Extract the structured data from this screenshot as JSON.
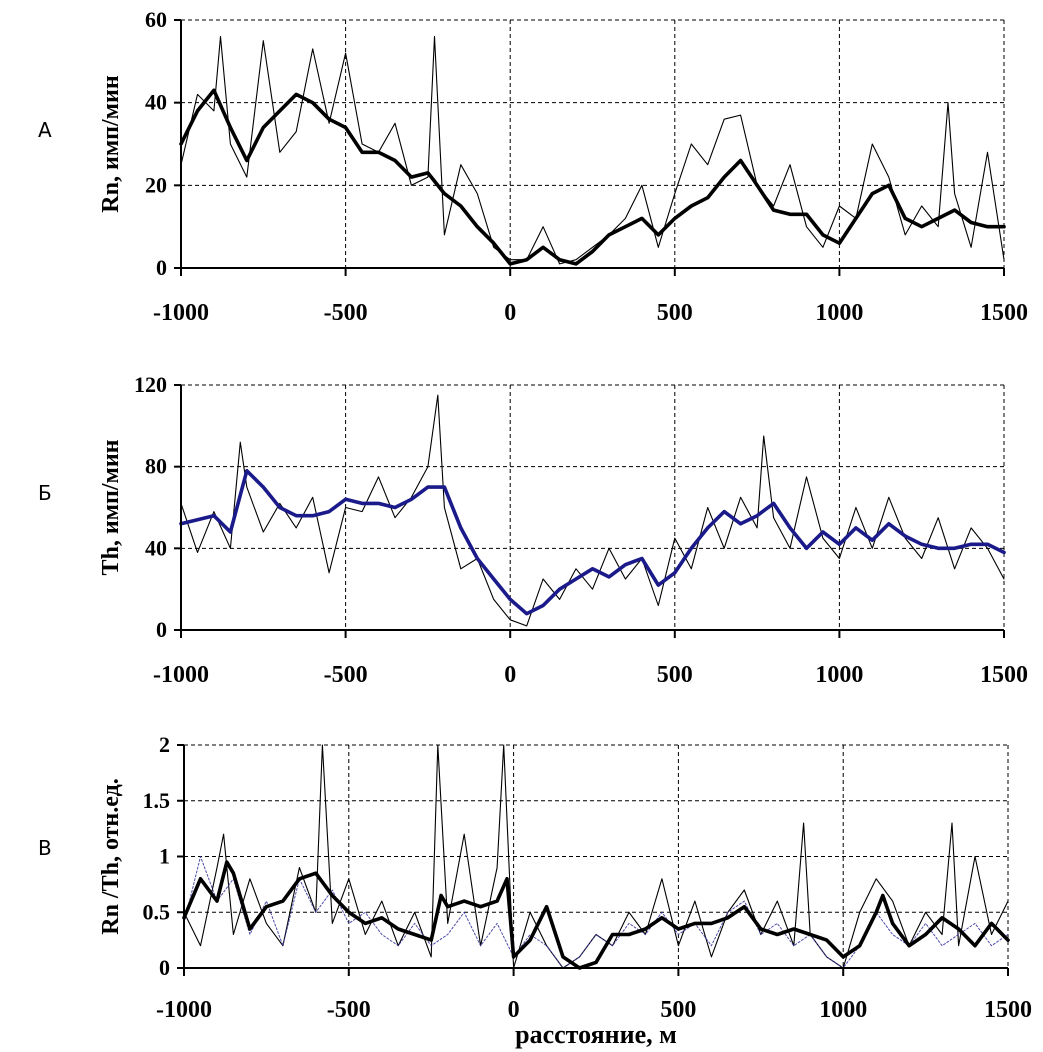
{
  "x_axis_label": "расстояние, м",
  "chart_data": [
    {
      "type": "line",
      "panel_letter": "А",
      "ylabel": "Rn, имп/мин",
      "xlim": [
        -1000,
        1500
      ],
      "ylim": [
        0,
        60
      ],
      "x_ticks": [
        "-1000",
        "-500",
        "0",
        "500",
        "1000",
        "1500"
      ],
      "y_ticks": [
        "0",
        "20",
        "40",
        "60"
      ],
      "grid": true,
      "series": [
        {
          "style": "raw",
          "color": "#000000",
          "x": [
            -1000,
            -950,
            -900,
            -880,
            -850,
            -800,
            -750,
            -700,
            -650,
            -600,
            -550,
            -500,
            -450,
            -400,
            -350,
            -300,
            -250,
            -230,
            -200,
            -150,
            -100,
            -50,
            0,
            50,
            100,
            150,
            200,
            250,
            300,
            350,
            400,
            450,
            500,
            550,
            600,
            650,
            700,
            750,
            800,
            850,
            900,
            950,
            1000,
            1050,
            1100,
            1150,
            1200,
            1250,
            1300,
            1330,
            1350,
            1400,
            1450,
            1500
          ],
          "y": [
            25,
            42,
            38,
            56,
            30,
            22,
            55,
            28,
            33,
            53,
            35,
            52,
            30,
            28,
            35,
            20,
            22,
            56,
            8,
            25,
            18,
            5,
            2,
            2,
            10,
            1,
            2,
            5,
            8,
            12,
            20,
            5,
            18,
            30,
            25,
            36,
            37,
            20,
            15,
            25,
            10,
            5,
            15,
            12,
            30,
            22,
            8,
            15,
            10,
            40,
            18,
            5,
            28,
            2
          ]
        },
        {
          "style": "smoothed",
          "color": "#000000",
          "x": [
            -1000,
            -950,
            -900,
            -850,
            -800,
            -750,
            -700,
            -650,
            -600,
            -550,
            -500,
            -450,
            -400,
            -350,
            -300,
            -250,
            -200,
            -150,
            -100,
            -50,
            0,
            50,
            100,
            150,
            200,
            250,
            300,
            350,
            400,
            450,
            500,
            550,
            600,
            650,
            700,
            750,
            800,
            850,
            900,
            950,
            1000,
            1050,
            1100,
            1150,
            1200,
            1250,
            1300,
            1350,
            1400,
            1450,
            1500
          ],
          "y": [
            30,
            38,
            43,
            34,
            26,
            34,
            38,
            42,
            40,
            36,
            34,
            28,
            28,
            26,
            22,
            23,
            18,
            15,
            10,
            6,
            1,
            2,
            5,
            2,
            1,
            4,
            8,
            10,
            12,
            8,
            12,
            15,
            17,
            22,
            26,
            20,
            14,
            13,
            13,
            8,
            6,
            12,
            18,
            20,
            12,
            10,
            12,
            14,
            11,
            10,
            10
          ]
        }
      ]
    },
    {
      "type": "line",
      "panel_letter": "Б",
      "ylabel": "Th, имп/мин",
      "xlim": [
        -1000,
        1500
      ],
      "ylim": [
        0,
        120
      ],
      "x_ticks": [
        "-1000",
        "-500",
        "0",
        "500",
        "1000",
        "1500"
      ],
      "y_ticks": [
        "0",
        "40",
        "80",
        "120"
      ],
      "grid": true,
      "series": [
        {
          "style": "raw",
          "color": "#000000",
          "x": [
            -1000,
            -950,
            -900,
            -850,
            -820,
            -800,
            -750,
            -700,
            -650,
            -600,
            -550,
            -500,
            -450,
            -400,
            -350,
            -300,
            -250,
            -220,
            -200,
            -150,
            -100,
            -50,
            0,
            50,
            100,
            150,
            200,
            250,
            300,
            350,
            400,
            450,
            500,
            550,
            600,
            650,
            700,
            750,
            770,
            800,
            850,
            900,
            950,
            1000,
            1050,
            1100,
            1150,
            1200,
            1250,
            1300,
            1350,
            1400,
            1450,
            1500
          ],
          "y": [
            62,
            38,
            58,
            40,
            92,
            70,
            48,
            62,
            50,
            65,
            28,
            60,
            58,
            75,
            55,
            65,
            80,
            115,
            60,
            30,
            35,
            15,
            5,
            2,
            25,
            15,
            30,
            20,
            40,
            25,
            35,
            12,
            45,
            30,
            60,
            40,
            65,
            50,
            95,
            55,
            40,
            75,
            45,
            35,
            60,
            40,
            65,
            45,
            35,
            55,
            30,
            50,
            40,
            25
          ]
        },
        {
          "style": "smoothed",
          "color": "#1a1a8a",
          "x": [
            -1000,
            -950,
            -900,
            -850,
            -800,
            -750,
            -700,
            -650,
            -600,
            -550,
            -500,
            -450,
            -400,
            -350,
            -300,
            -250,
            -200,
            -150,
            -100,
            -50,
            0,
            50,
            100,
            150,
            200,
            250,
            300,
            350,
            400,
            450,
            500,
            550,
            600,
            650,
            700,
            750,
            800,
            850,
            900,
            950,
            1000,
            1050,
            1100,
            1150,
            1200,
            1250,
            1300,
            1350,
            1400,
            1450,
            1500
          ],
          "y": [
            52,
            54,
            56,
            48,
            78,
            70,
            60,
            56,
            56,
            58,
            64,
            62,
            62,
            60,
            64,
            70,
            70,
            50,
            35,
            25,
            15,
            8,
            12,
            20,
            25,
            30,
            26,
            32,
            35,
            22,
            28,
            40,
            50,
            58,
            52,
            56,
            62,
            50,
            40,
            48,
            42,
            50,
            44,
            52,
            46,
            42,
            40,
            40,
            42,
            42,
            38
          ]
        }
      ]
    },
    {
      "type": "line",
      "panel_letter": "В",
      "ylabel": "Rn /Th, отн.ед.",
      "xlim": [
        -1000,
        1500
      ],
      "ylim": [
        0,
        2
      ],
      "x_ticks": [
        "-1000",
        "-500",
        "0",
        "500",
        "1000",
        "1500"
      ],
      "y_ticks": [
        "0",
        "0.5",
        "1",
        "1.5",
        "2"
      ],
      "grid": true,
      "series": [
        {
          "style": "raw",
          "color": "#000000",
          "x": [
            -1000,
            -950,
            -900,
            -880,
            -850,
            -800,
            -750,
            -700,
            -650,
            -600,
            -580,
            -550,
            -500,
            -450,
            -400,
            -350,
            -300,
            -250,
            -230,
            -200,
            -150,
            -100,
            -50,
            -30,
            0,
            50,
            100,
            150,
            200,
            250,
            300,
            350,
            400,
            450,
            500,
            550,
            600,
            650,
            700,
            750,
            800,
            850,
            880,
            900,
            950,
            1000,
            1050,
            1100,
            1150,
            1200,
            1250,
            1300,
            1330,
            1350,
            1400,
            1450,
            1500
          ],
          "y": [
            0.5,
            0.2,
            0.9,
            1.2,
            0.3,
            0.8,
            0.4,
            0.2,
            0.9,
            0.5,
            2.0,
            0.4,
            0.8,
            0.3,
            0.6,
            0.2,
            0.5,
            0.1,
            2.0,
            0.4,
            1.2,
            0.2,
            0.9,
            2.0,
            0.0,
            0.5,
            0.2,
            0.0,
            0.1,
            0.3,
            0.2,
            0.5,
            0.3,
            0.8,
            0.2,
            0.6,
            0.1,
            0.5,
            0.7,
            0.3,
            0.6,
            0.2,
            1.3,
            0.3,
            0.1,
            0.0,
            0.5,
            0.8,
            0.6,
            0.2,
            0.5,
            0.3,
            1.3,
            0.2,
            1.0,
            0.3,
            0.6
          ]
        },
        {
          "style": "raw-dotted",
          "color": "#3a3aa0",
          "x": [
            -1000,
            -950,
            -900,
            -850,
            -800,
            -750,
            -700,
            -650,
            -600,
            -550,
            -500,
            -450,
            -400,
            -350,
            -300,
            -250,
            -200,
            -150,
            -100,
            -50,
            0,
            50,
            100,
            150,
            200,
            250,
            300,
            350,
            400,
            450,
            500,
            550,
            600,
            650,
            700,
            750,
            800,
            850,
            900,
            950,
            1000,
            1050,
            1100,
            1150,
            1200,
            1250,
            1300,
            1350,
            1400,
            1450,
            1500
          ],
          "y": [
            0.4,
            1.0,
            0.6,
            0.8,
            0.3,
            0.6,
            0.2,
            0.8,
            0.5,
            0.7,
            0.4,
            0.5,
            0.3,
            0.2,
            0.4,
            0.2,
            0.3,
            0.5,
            0.2,
            0.4,
            0.1,
            0.3,
            0.2,
            0.0,
            0.1,
            0.3,
            0.2,
            0.4,
            0.3,
            0.5,
            0.3,
            0.4,
            0.2,
            0.5,
            0.6,
            0.3,
            0.4,
            0.2,
            0.3,
            0.1,
            0.0,
            0.2,
            0.5,
            0.3,
            0.2,
            0.4,
            0.2,
            0.3,
            0.4,
            0.2,
            0.3
          ]
        },
        {
          "style": "smoothed",
          "color": "#000000",
          "x": [
            -1000,
            -950,
            -900,
            -870,
            -850,
            -800,
            -750,
            -700,
            -650,
            -600,
            -550,
            -500,
            -450,
            -400,
            -350,
            -300,
            -250,
            -220,
            -200,
            -150,
            -100,
            -50,
            -20,
            0,
            50,
            100,
            150,
            200,
            250,
            300,
            350,
            400,
            450,
            500,
            550,
            600,
            650,
            700,
            750,
            800,
            850,
            900,
            950,
            1000,
            1050,
            1100,
            1120,
            1150,
            1200,
            1250,
            1300,
            1350,
            1400,
            1450,
            1500
          ],
          "y": [
            0.45,
            0.8,
            0.6,
            0.95,
            0.85,
            0.35,
            0.55,
            0.6,
            0.8,
            0.85,
            0.65,
            0.5,
            0.4,
            0.45,
            0.35,
            0.3,
            0.25,
            0.65,
            0.55,
            0.6,
            0.55,
            0.6,
            0.8,
            0.1,
            0.25,
            0.55,
            0.1,
            0.0,
            0.05,
            0.3,
            0.3,
            0.35,
            0.45,
            0.35,
            0.4,
            0.4,
            0.45,
            0.55,
            0.35,
            0.3,
            0.35,
            0.3,
            0.25,
            0.1,
            0.2,
            0.5,
            0.65,
            0.4,
            0.2,
            0.3,
            0.45,
            0.35,
            0.2,
            0.4,
            0.25
          ]
        }
      ]
    }
  ]
}
